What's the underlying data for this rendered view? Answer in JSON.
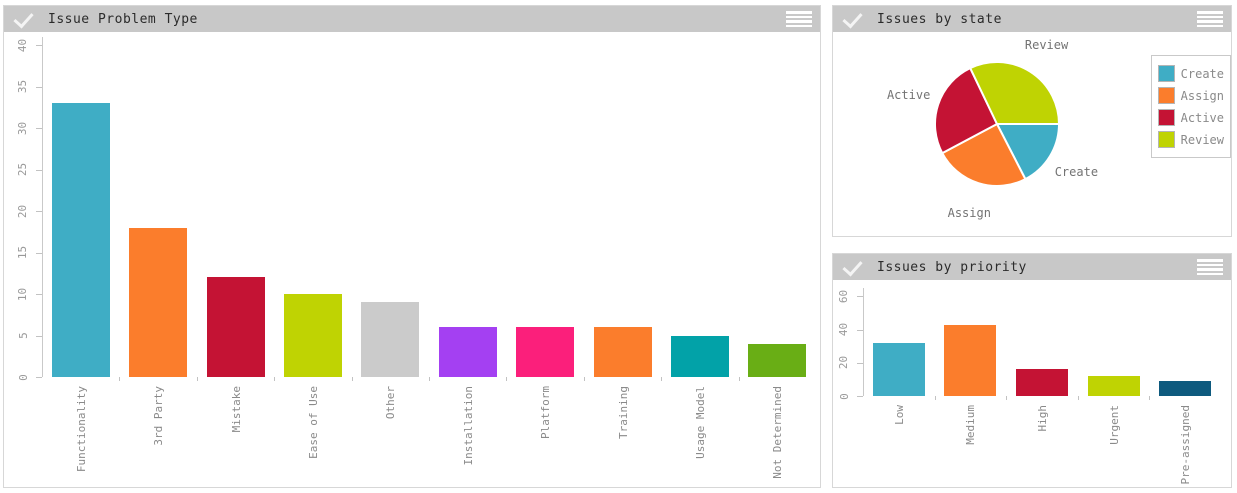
{
  "panels": [
    {
      "title": "Issue Problem Type"
    },
    {
      "title": "Issues by state"
    },
    {
      "title": "Issues by priority"
    }
  ],
  "icons": {
    "header_check": "check-icon",
    "header_menu": "menu-icon"
  },
  "colors": {
    "header_bg": "#c8c8c8",
    "panel_border": "#d7d7d7",
    "axis": "#c9c9c9",
    "tick_text": "#999999",
    "category_text": "#8a8a8a",
    "title_text": "#2b2b2b",
    "pie_label_text": "#737373",
    "legend_text": "#8a8a8a"
  },
  "chart_data": [
    {
      "type": "bar",
      "title": "Issue Problem Type",
      "categories": [
        "Functionality",
        "3rd Party",
        "Mistake",
        "Ease of Use",
        "Other",
        "Installation",
        "Platform",
        "Training",
        "Usage Model",
        "Not Determined"
      ],
      "values": [
        33,
        18,
        12,
        10,
        9,
        6,
        6,
        6,
        5,
        4
      ],
      "colors": [
        "#3fadc5",
        "#fb7d2c",
        "#c41334",
        "#bfd303",
        "#cbcbcb",
        "#a440f2",
        "#fb1f7b",
        "#fb7d2c",
        "#02a2a8",
        "#69ae15"
      ],
      "xlabel": "",
      "ylabel": "",
      "yticks": [
        0,
        5,
        10,
        15,
        20,
        25,
        30,
        35,
        40
      ],
      "ylim": [
        0,
        42
      ],
      "grid": false,
      "tick_label_rotation_deg": 90
    },
    {
      "type": "pie",
      "title": "Issues by state",
      "labels": [
        "Create",
        "Assign",
        "Active",
        "Review"
      ],
      "values": [
        19,
        27,
        28,
        35
      ],
      "colors": [
        "#3fadc5",
        "#fb7d2c",
        "#c41334",
        "#bfd303"
      ],
      "legend": [
        "Create",
        "Assign",
        "Active",
        "Review"
      ],
      "legend_position": "right",
      "start_angle_deg": 0,
      "direction": "clockwise",
      "slice_border_color": "#ffffff"
    },
    {
      "type": "bar",
      "title": "Issues by priority",
      "categories": [
        "Low",
        "Medium",
        "High",
        "Urgent",
        "Pre-assigned"
      ],
      "values": [
        32,
        43,
        16,
        12,
        9
      ],
      "colors": [
        "#3fadc5",
        "#fb7d2c",
        "#c41334",
        "#bfd303",
        "#0e5a7e"
      ],
      "xlabel": "",
      "ylabel": "",
      "yticks": [
        0,
        20,
        40,
        60
      ],
      "ylim": [
        0,
        70
      ],
      "grid": false,
      "tick_label_rotation_deg": 90
    }
  ]
}
